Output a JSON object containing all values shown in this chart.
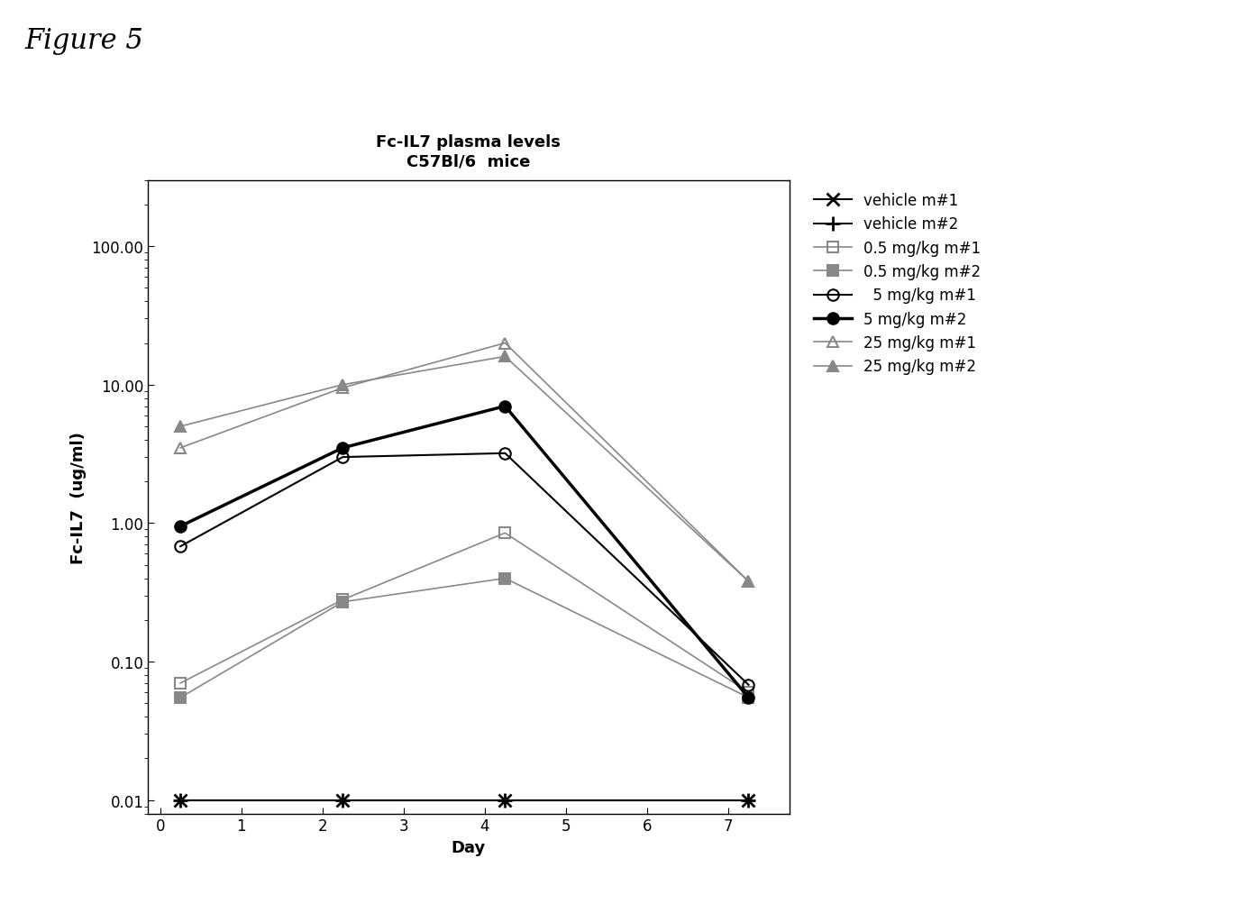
{
  "title_line1": "Fc-IL7 plasma levels",
  "title_line2": "C57Bl/6  mice",
  "xlabel": "Day",
  "ylabel": "Fc-IL7  (ug/ml)",
  "figure_title": "Figure 5",
  "series": [
    {
      "label": "vehicle m#1",
      "x": [
        0.25,
        2.25,
        4.25,
        7.25
      ],
      "y": [
        0.01,
        0.01,
        0.01,
        0.01
      ],
      "color": "#000000",
      "marker": "x",
      "markersize": 10,
      "linewidth": 1.5,
      "linestyle": "-",
      "fillstyle": "none",
      "markeredgewidth": 2
    },
    {
      "label": "vehicle m#2",
      "x": [
        0.25,
        2.25,
        4.25,
        7.25
      ],
      "y": [
        0.01,
        0.01,
        0.01,
        0.01
      ],
      "color": "#000000",
      "marker": "+",
      "markersize": 12,
      "linewidth": 1.5,
      "linestyle": "-",
      "fillstyle": "none",
      "markeredgewidth": 2
    },
    {
      "label": "0.5 mg/kg m#1",
      "x": [
        0.25,
        2.25,
        4.25,
        7.25
      ],
      "y": [
        0.07,
        0.28,
        0.85,
        0.06
      ],
      "color": "#888888",
      "marker": "s",
      "markersize": 9,
      "linewidth": 1.2,
      "linestyle": "-",
      "fillstyle": "none",
      "markeredgewidth": 1.5
    },
    {
      "label": "0.5 mg/kg m#2",
      "x": [
        0.25,
        2.25,
        4.25,
        7.25
      ],
      "y": [
        0.055,
        0.27,
        0.4,
        0.055
      ],
      "color": "#888888",
      "marker": "s",
      "markersize": 9,
      "linewidth": 1.2,
      "linestyle": "-",
      "fillstyle": "full",
      "markeredgewidth": 1.5
    },
    {
      "label": "  5 mg/kg m#1",
      "x": [
        0.25,
        2.25,
        4.25,
        7.25
      ],
      "y": [
        0.68,
        3.0,
        3.2,
        0.068
      ],
      "color": "#000000",
      "marker": "o",
      "markersize": 9,
      "linewidth": 1.5,
      "linestyle": "-",
      "fillstyle": "none",
      "markeredgewidth": 1.5
    },
    {
      "label": "5 mg/kg m#2",
      "x": [
        0.25,
        2.25,
        4.25,
        7.25
      ],
      "y": [
        0.95,
        3.5,
        7.0,
        0.055
      ],
      "color": "#000000",
      "marker": "o",
      "markersize": 9,
      "linewidth": 2.5,
      "linestyle": "-",
      "fillstyle": "full",
      "markeredgewidth": 1.5
    },
    {
      "label": "25 mg/kg m#1",
      "x": [
        0.25,
        2.25,
        4.25,
        7.25
      ],
      "y": [
        3.5,
        9.5,
        20.0,
        0.38
      ],
      "color": "#888888",
      "marker": "^",
      "markersize": 9,
      "linewidth": 1.2,
      "linestyle": "-",
      "fillstyle": "none",
      "markeredgewidth": 1.5
    },
    {
      "label": "25 mg/kg m#2",
      "x": [
        0.25,
        2.25,
        4.25,
        7.25
      ],
      "y": [
        5.0,
        10.0,
        16.0,
        0.38
      ],
      "color": "#888888",
      "marker": "^",
      "markersize": 9,
      "linewidth": 1.2,
      "linestyle": "-",
      "fillstyle": "full",
      "markeredgewidth": 1.5
    }
  ],
  "xlim": [
    -0.15,
    7.75
  ],
  "ylim_log": [
    0.008,
    300
  ],
  "xticks": [
    0,
    1,
    2,
    3,
    4,
    5,
    6,
    7
  ],
  "yticks": [
    0.01,
    0.1,
    1.0,
    10.0,
    100.0
  ],
  "ytick_labels": [
    "0.01",
    "0.10",
    "1.00",
    "10.00",
    "100.00"
  ],
  "bg_color": "#ffffff",
  "title_fontsize": 13,
  "axis_label_fontsize": 13,
  "tick_fontsize": 12,
  "legend_fontsize": 12,
  "figure_title_fontsize": 22
}
